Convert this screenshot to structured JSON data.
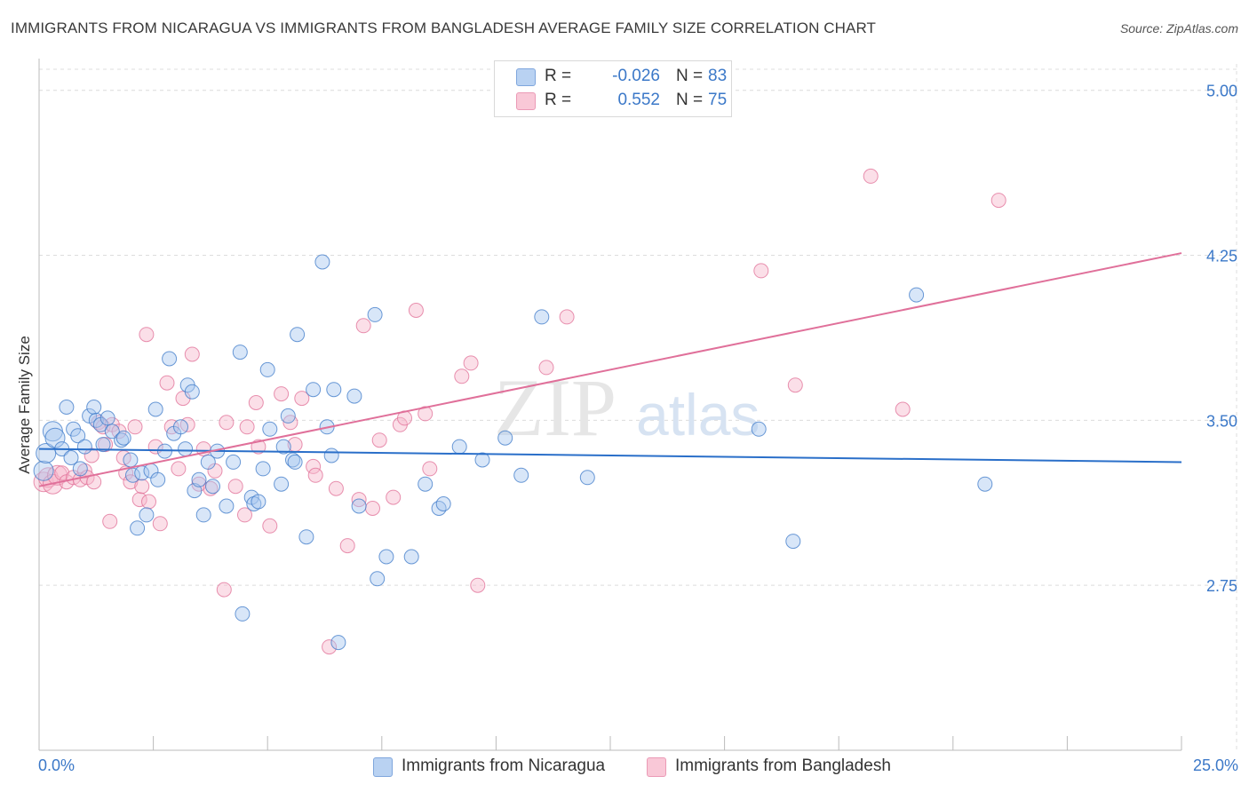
{
  "header": {
    "title": "IMMIGRANTS FROM NICARAGUA VS IMMIGRANTS FROM BANGLADESH AVERAGE FAMILY SIZE CORRELATION CHART",
    "source": "Source: ZipAtlas.com"
  },
  "colors": {
    "blue": "#3b78c8",
    "blue_fill": "#a9c8ef",
    "blue_line": "#2a6fc9",
    "pink": "#e06d96",
    "pink_fill": "#f6b9cc",
    "pink_line": "#e0709a",
    "grid": "#dcdcdc",
    "axis_label": "#3b78c8"
  },
  "legend": {
    "rows": [
      {
        "r_label": "R =",
        "r_value": "-0.026",
        "n_label": "N =",
        "n_value": "83"
      },
      {
        "r_label": "R =",
        "r_value": "0.552",
        "n_label": "N =",
        "n_value": "75"
      }
    ]
  },
  "watermark": {
    "zip": "ZIP",
    "atlas": "atlas"
  },
  "chart_data": {
    "type": "scatter",
    "title": "IMMIGRANTS FROM NICARAGUA VS IMMIGRANTS FROM BANGLADESH AVERAGE FAMILY SIZE CORRELATION CHART",
    "xlabel": "",
    "ylabel": "Average Family Size",
    "xlim": [
      0,
      25
    ],
    "ylim": [
      2.0,
      5.12
    ],
    "x_tick_labels": [
      "0.0%",
      "25.0%"
    ],
    "y_ticks": [
      2.75,
      3.5,
      4.25,
      5.0
    ],
    "y_tick_labels": [
      "2.75",
      "3.50",
      "4.25",
      "5.00"
    ],
    "grid": true,
    "series": [
      {
        "name": "Immigrants from Nicaragua",
        "color": "blue",
        "trend": {
          "x": [
            0,
            25
          ],
          "y": [
            3.37,
            3.31
          ]
        },
        "points": [
          [
            0.1,
            3.27
          ],
          [
            0.15,
            3.35
          ],
          [
            0.3,
            3.45
          ],
          [
            0.35,
            3.42
          ],
          [
            0.5,
            3.37
          ],
          [
            0.6,
            3.56
          ],
          [
            0.7,
            3.33
          ],
          [
            0.75,
            3.46
          ],
          [
            0.85,
            3.43
          ],
          [
            0.9,
            3.28
          ],
          [
            1.0,
            3.38
          ],
          [
            1.1,
            3.52
          ],
          [
            1.2,
            3.56
          ],
          [
            1.25,
            3.5
          ],
          [
            1.35,
            3.48
          ],
          [
            1.4,
            3.39
          ],
          [
            1.5,
            3.51
          ],
          [
            1.6,
            3.45
          ],
          [
            1.8,
            3.41
          ],
          [
            1.85,
            3.42
          ],
          [
            2.0,
            3.32
          ],
          [
            2.05,
            3.25
          ],
          [
            2.15,
            3.01
          ],
          [
            2.25,
            3.26
          ],
          [
            2.35,
            3.07
          ],
          [
            2.45,
            3.27
          ],
          [
            2.55,
            3.55
          ],
          [
            2.6,
            3.23
          ],
          [
            2.75,
            3.36
          ],
          [
            2.85,
            3.78
          ],
          [
            2.95,
            3.44
          ],
          [
            3.1,
            3.47
          ],
          [
            3.2,
            3.37
          ],
          [
            3.25,
            3.66
          ],
          [
            3.35,
            3.63
          ],
          [
            3.4,
            3.18
          ],
          [
            3.5,
            3.23
          ],
          [
            3.6,
            3.07
          ],
          [
            3.7,
            3.31
          ],
          [
            3.8,
            3.2
          ],
          [
            3.9,
            3.36
          ],
          [
            4.1,
            3.11
          ],
          [
            4.25,
            3.31
          ],
          [
            4.4,
            3.81
          ],
          [
            4.45,
            2.62
          ],
          [
            4.65,
            3.15
          ],
          [
            4.7,
            3.12
          ],
          [
            4.8,
            3.13
          ],
          [
            4.9,
            3.28
          ],
          [
            5.0,
            3.73
          ],
          [
            5.05,
            3.46
          ],
          [
            5.3,
            3.21
          ],
          [
            5.35,
            3.38
          ],
          [
            5.45,
            3.52
          ],
          [
            5.55,
            3.32
          ],
          [
            5.6,
            3.31
          ],
          [
            5.65,
            3.89
          ],
          [
            5.85,
            2.97
          ],
          [
            6.0,
            3.64
          ],
          [
            6.2,
            4.22
          ],
          [
            6.3,
            3.47
          ],
          [
            6.4,
            3.34
          ],
          [
            6.45,
            3.64
          ],
          [
            6.55,
            2.49
          ],
          [
            6.9,
            3.61
          ],
          [
            7.0,
            3.11
          ],
          [
            7.35,
            3.98
          ],
          [
            7.4,
            2.78
          ],
          [
            7.6,
            2.88
          ],
          [
            8.15,
            2.88
          ],
          [
            8.45,
            3.21
          ],
          [
            8.75,
            3.1
          ],
          [
            8.85,
            3.12
          ],
          [
            9.2,
            3.38
          ],
          [
            9.7,
            3.32
          ],
          [
            10.2,
            3.42
          ],
          [
            10.55,
            3.25
          ],
          [
            11.0,
            3.97
          ],
          [
            12.0,
            3.24
          ],
          [
            15.75,
            3.46
          ],
          [
            16.5,
            2.95
          ],
          [
            19.2,
            4.07
          ],
          [
            20.7,
            3.21
          ]
        ]
      },
      {
        "name": "Immigrants from Bangladesh",
        "color": "pink",
        "trend": {
          "x": [
            0,
            25
          ],
          "y": [
            3.2,
            4.26
          ]
        },
        "points": [
          [
            0.1,
            3.22
          ],
          [
            0.2,
            3.24
          ],
          [
            0.3,
            3.21
          ],
          [
            0.4,
            3.25
          ],
          [
            0.5,
            3.26
          ],
          [
            0.6,
            3.22
          ],
          [
            0.75,
            3.24
          ],
          [
            0.9,
            3.23
          ],
          [
            1.0,
            3.27
          ],
          [
            1.05,
            3.24
          ],
          [
            1.15,
            3.34
          ],
          [
            1.2,
            3.22
          ],
          [
            1.3,
            3.49
          ],
          [
            1.4,
            3.47
          ],
          [
            1.45,
            3.39
          ],
          [
            1.55,
            3.04
          ],
          [
            1.6,
            3.48
          ],
          [
            1.75,
            3.45
          ],
          [
            1.85,
            3.33
          ],
          [
            1.9,
            3.26
          ],
          [
            2.0,
            3.22
          ],
          [
            2.1,
            3.47
          ],
          [
            2.2,
            3.14
          ],
          [
            2.25,
            3.2
          ],
          [
            2.35,
            3.89
          ],
          [
            2.4,
            3.13
          ],
          [
            2.55,
            3.38
          ],
          [
            2.65,
            3.03
          ],
          [
            2.8,
            3.67
          ],
          [
            2.9,
            3.47
          ],
          [
            3.05,
            3.28
          ],
          [
            3.15,
            3.6
          ],
          [
            3.25,
            3.48
          ],
          [
            3.35,
            3.8
          ],
          [
            3.5,
            3.21
          ],
          [
            3.6,
            3.37
          ],
          [
            3.75,
            3.19
          ],
          [
            3.85,
            3.27
          ],
          [
            4.05,
            2.73
          ],
          [
            4.1,
            3.49
          ],
          [
            4.3,
            3.2
          ],
          [
            4.5,
            3.07
          ],
          [
            4.55,
            3.47
          ],
          [
            4.75,
            3.58
          ],
          [
            4.8,
            3.38
          ],
          [
            5.05,
            3.02
          ],
          [
            5.3,
            3.62
          ],
          [
            5.5,
            3.49
          ],
          [
            5.6,
            3.39
          ],
          [
            5.75,
            3.6
          ],
          [
            6.0,
            3.29
          ],
          [
            6.05,
            3.25
          ],
          [
            6.35,
            2.47
          ],
          [
            6.5,
            3.19
          ],
          [
            6.75,
            2.93
          ],
          [
            7.0,
            3.14
          ],
          [
            7.1,
            3.93
          ],
          [
            7.3,
            3.1
          ],
          [
            7.45,
            3.41
          ],
          [
            7.75,
            3.15
          ],
          [
            7.9,
            3.48
          ],
          [
            8.0,
            3.51
          ],
          [
            8.25,
            4.0
          ],
          [
            8.45,
            3.53
          ],
          [
            8.55,
            3.28
          ],
          [
            9.25,
            3.7
          ],
          [
            9.45,
            3.76
          ],
          [
            9.6,
            2.75
          ],
          [
            11.1,
            3.74
          ],
          [
            11.55,
            3.97
          ],
          [
            15.8,
            4.18
          ],
          [
            16.55,
            3.66
          ],
          [
            18.2,
            4.61
          ],
          [
            18.9,
            3.55
          ],
          [
            21.0,
            4.5
          ]
        ]
      }
    ]
  },
  "x_axis": {
    "left_label": "0.0%",
    "right_label": "25.0%"
  },
  "bottom_legend": {
    "items": [
      {
        "label": "Immigrants from Nicaragua"
      },
      {
        "label": "Immigrants from Bangladesh"
      }
    ]
  }
}
